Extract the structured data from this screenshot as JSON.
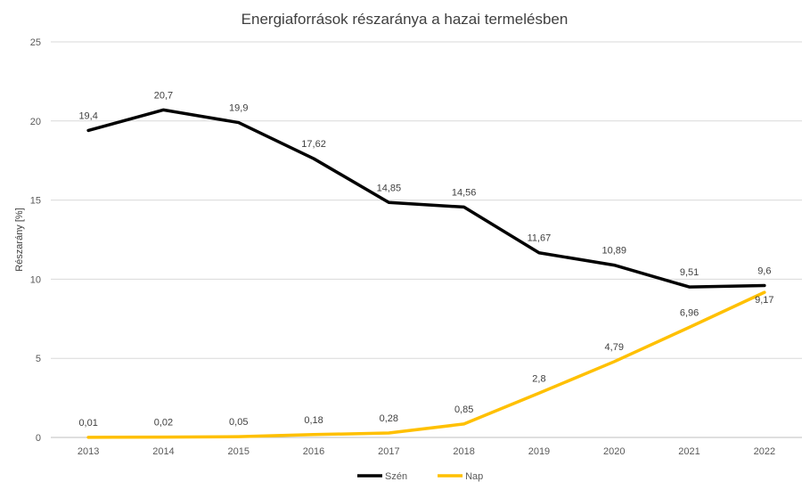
{
  "chart_data": {
    "type": "line",
    "title": "Energiaforrások részaránya a hazai termelésben",
    "xlabel": "",
    "ylabel": "Részarány [%]",
    "ylim": [
      0,
      25
    ],
    "yticks": [
      "0",
      "5",
      "10",
      "15",
      "20",
      "25"
    ],
    "grid": true,
    "legend_position": "bottom",
    "categories": [
      "2013",
      "2014",
      "2015",
      "2016",
      "2017",
      "2018",
      "2019",
      "2020",
      "2021",
      "2022"
    ],
    "series": [
      {
        "name": "Szén",
        "color": "#000000",
        "values": [
          19.4,
          20.7,
          19.9,
          17.62,
          14.85,
          14.56,
          11.67,
          10.89,
          9.51,
          9.6
        ],
        "labels": [
          "19,4",
          "20,7",
          "19,9",
          "17,62",
          "14,85",
          "14,56",
          "11,67",
          "10,89",
          "9,51",
          "9,6"
        ]
      },
      {
        "name": "Nap",
        "color": "#FFC000",
        "values": [
          0.01,
          0.02,
          0.05,
          0.18,
          0.28,
          0.85,
          2.8,
          4.79,
          6.96,
          9.17
        ],
        "labels": [
          "0,01",
          "0,02",
          "0,05",
          "0,18",
          "0,28",
          "0,85",
          "2,8",
          "4,79",
          "6,96",
          "9,17"
        ]
      }
    ]
  }
}
